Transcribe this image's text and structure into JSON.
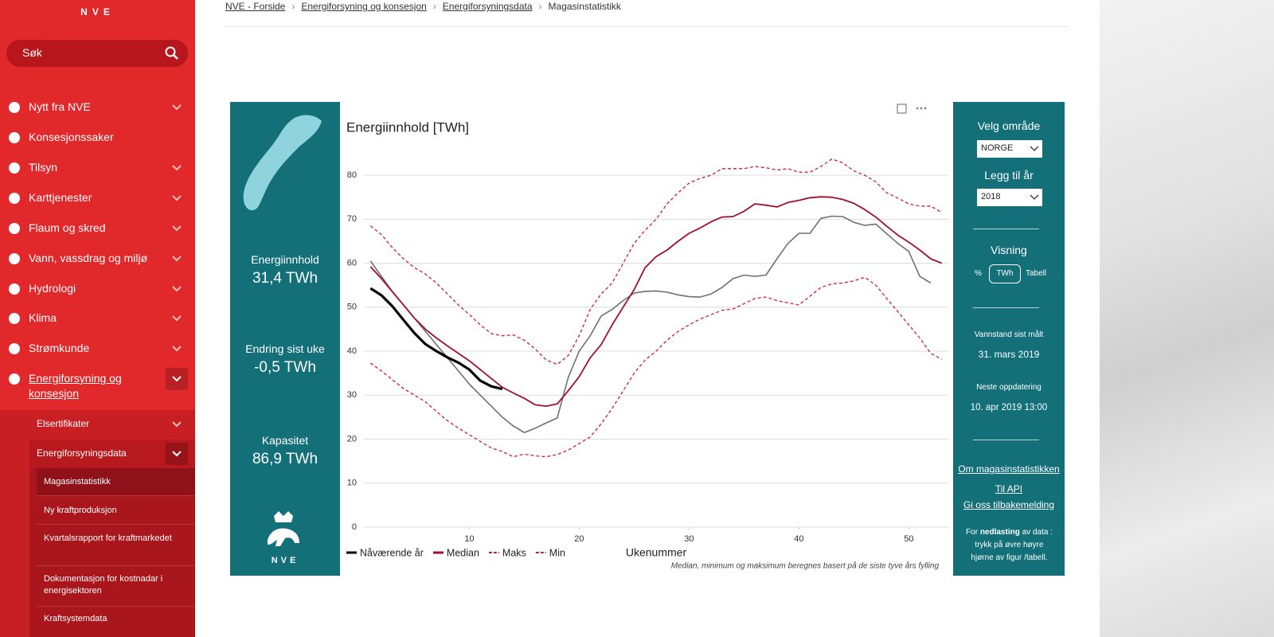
{
  "logo": "NVE",
  "search": {
    "placeholder": "Søk"
  },
  "nav": [
    {
      "label": "Nytt fra NVE",
      "expandable": true
    },
    {
      "label": "Konsesjonssaker",
      "expandable": false
    },
    {
      "label": "Tilsyn",
      "expandable": true
    },
    {
      "label": "Karttjenester",
      "expandable": true
    },
    {
      "label": "Flaum og skred",
      "expandable": true
    },
    {
      "label": "Vann, vassdrag og miljø",
      "expandable": true
    },
    {
      "label": "Hydrologi",
      "expandable": true
    },
    {
      "label": "Klima",
      "expandable": true
    },
    {
      "label": "Strømkunde",
      "expandable": true
    },
    {
      "label": "Energiforsyning og konsesjon",
      "expandable": true
    }
  ],
  "subnav": [
    "Elsertifikater",
    "Energiforsyningsdata"
  ],
  "subsubnav": [
    "Magasinstatistikk",
    "Ny kraftproduksjon",
    "Kvartalsrapport for kraftmarkedet",
    "Dokumentasjon for kostnadar i energisektoren",
    "Kraftsystemdata"
  ],
  "breadcrumb": [
    "NVE - Forside",
    "Energiforsyning og konsesjon",
    "Energiforsyningsdata",
    "Magasinstatistikk"
  ],
  "summary": [
    {
      "label": "Energiinnhold",
      "value": "31,4 TWh"
    },
    {
      "label": "Endring sist uke",
      "value": "-0,5 TWh"
    },
    {
      "label": "Kapasitet",
      "value": "86,9 TWh"
    }
  ],
  "panel_logo": "NVE",
  "controls": {
    "area_label": "Velg område",
    "area": "NORGE",
    "year_label": "Legg til år",
    "year": "2018",
    "view_label": "Visning",
    "view_options": [
      "%",
      "TWh",
      "Tabell"
    ],
    "measured_label": "Vannstand sist målt",
    "measured": "31. mars 2019",
    "next_label": "Neste oppdatering",
    "next": "10. apr 2019 13:00",
    "links": [
      "Om magasinstatistikken",
      "Til API",
      "Gi oss tilbakemelding"
    ],
    "download_note": [
      "For",
      "nedlasting",
      "av data : trykk på øvre høyre hjørne av figur /tabell."
    ]
  },
  "chart_data": {
    "type": "line",
    "title": "Energiinnhold [TWh]",
    "x_label": "Ukenummer",
    "note": "Median, minimum og maksimum beregnes basert på de siste tyve års fylling",
    "x": [
      1,
      2,
      3,
      4,
      5,
      6,
      7,
      8,
      9,
      10,
      11,
      12,
      13,
      14,
      15,
      16,
      17,
      18,
      19,
      20,
      21,
      22,
      23,
      24,
      25,
      26,
      27,
      28,
      29,
      30,
      31,
      32,
      33,
      34,
      35,
      36,
      37,
      38,
      39,
      40,
      41,
      42,
      43,
      44,
      45,
      46,
      47,
      48,
      49,
      50,
      51,
      52,
      53
    ],
    "xlim": [
      0.4,
      53.6
    ],
    "xticks": [
      10,
      20,
      30,
      40,
      50
    ],
    "ylim": [
      0,
      84
    ],
    "yticks": [
      0,
      10,
      20,
      30,
      40,
      50,
      60,
      70,
      80
    ],
    "grid": true,
    "series": [
      {
        "color": "#707070",
        "dashed": false,
        "width": 1.6,
        "values": [
          60.5,
          57,
          53.5,
          50.5,
          47.5,
          44.5,
          41.5,
          38.5,
          35.5,
          32.5,
          30,
          27.5,
          25,
          23,
          21.5,
          22.5,
          23.7,
          24.8,
          34,
          40,
          43.5,
          48,
          49.5,
          51.5,
          53.2,
          53.6,
          53.7,
          53.4,
          52.8,
          52.4,
          52.3,
          53,
          54.5,
          56.5,
          57.3,
          57,
          57.3,
          61,
          64.5,
          66.8,
          66.8,
          70.2,
          70.7,
          70.6,
          69.3,
          68.6,
          68.9,
          66.7,
          64.5,
          62.7,
          57,
          55.5,
          null
        ]
      },
      {
        "name": "Median",
        "color": "#a0102a",
        "dashed": false,
        "width": 1.8,
        "values": [
          59.2,
          56.5,
          53.5,
          50.5,
          47.5,
          45,
          43,
          41.2,
          39.5,
          37.8,
          35.8,
          33.8,
          31.8,
          30.5,
          29.3,
          27.8,
          27.5,
          28,
          31,
          34.2,
          38.5,
          41.5,
          46,
          50,
          54,
          59,
          61.5,
          63,
          65,
          66.8,
          68,
          69.4,
          70.5,
          70.6,
          71.8,
          73.5,
          73.2,
          72.8,
          73.8,
          74.3,
          74.9,
          75.1,
          75,
          74.5,
          73.6,
          72.2,
          70.5,
          68.4,
          66.4,
          64.8,
          63,
          61,
          60
        ]
      },
      {
        "name": "Maks",
        "color": "#c8203a",
        "dashed": true,
        "width": 1.3,
        "values": [
          68.5,
          66.5,
          63.5,
          61,
          59,
          57.5,
          55.5,
          53,
          50.5,
          48.3,
          46,
          44,
          43.5,
          43.7,
          42.5,
          40.5,
          38,
          37,
          39,
          43.5,
          49.5,
          53,
          55.5,
          60,
          64.5,
          67.5,
          70,
          73.5,
          76,
          78.2,
          79.3,
          80,
          81.5,
          81.5,
          81.5,
          82,
          81.7,
          81.2,
          81.5,
          80.7,
          80.7,
          82,
          83.7,
          82.8,
          81,
          80,
          78.5,
          76,
          74.8,
          73.5,
          73,
          73,
          71.5
        ]
      },
      {
        "name": "Min",
        "color": "#c8203a",
        "dashed": true,
        "width": 1.3,
        "values": [
          37.3,
          35.5,
          33.5,
          31.5,
          30,
          28.5,
          26.3,
          24.2,
          22.5,
          21,
          19.5,
          18,
          17.2,
          16,
          16.6,
          16.2,
          16,
          16.5,
          17.5,
          19,
          20.5,
          23.5,
          27,
          31,
          35,
          38,
          40,
          42.5,
          44.5,
          46,
          47.3,
          48.3,
          49.3,
          49.6,
          50.8,
          52,
          52.3,
          51.5,
          51,
          50.5,
          52.5,
          54.5,
          55.3,
          55.5,
          56,
          56.8,
          55,
          52,
          49,
          46,
          43,
          39.5,
          38.2
        ]
      },
      {
        "name": "Nåværende år",
        "color": "#000000",
        "dashed": false,
        "width": 3.2,
        "values": [
          54.3,
          52.7,
          50.2,
          47.1,
          44.1,
          41.6,
          40,
          38.6,
          37.4,
          35.8,
          33.3,
          32,
          31.4,
          null,
          null,
          null,
          null,
          null,
          null,
          null,
          null,
          null,
          null,
          null,
          null,
          null,
          null,
          null,
          null,
          null,
          null,
          null,
          null,
          null,
          null,
          null,
          null,
          null,
          null,
          null,
          null,
          null,
          null,
          null,
          null,
          null,
          null,
          null,
          null,
          null,
          null,
          null,
          null
        ]
      }
    ],
    "legend_order": [
      4,
      1,
      2,
      3
    ]
  }
}
